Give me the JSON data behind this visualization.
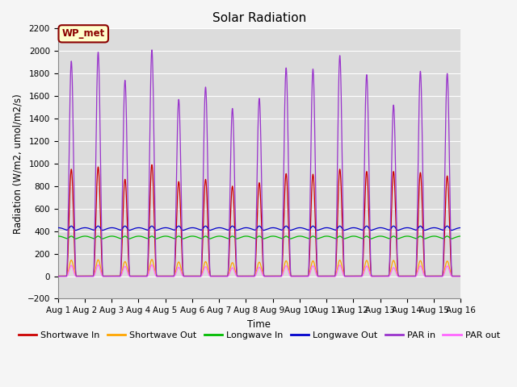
{
  "title": "Solar Radiation",
  "xlabel": "Time",
  "ylabel": "Radiation (W/m2, umol/m2/s)",
  "ylim": [
    -200,
    2200
  ],
  "yticks": [
    -200,
    0,
    200,
    400,
    600,
    800,
    1000,
    1200,
    1400,
    1600,
    1800,
    2000,
    2200
  ],
  "num_days": 15,
  "points_per_day": 288,
  "background_color": "#dcdcdc",
  "grid_color": "#ffffff",
  "annotation_text": "WP_met",
  "annotation_bg": "#ffffcc",
  "annotation_border": "#8b0000",
  "par_in_color": "#9933cc",
  "par_out_color": "#ff66ff",
  "sw_in_color": "#cc0000",
  "sw_out_color": "#ffa500",
  "lw_in_color": "#00bb00",
  "lw_out_color": "#0000cc",
  "day_peaks_par": [
    1910,
    1990,
    1740,
    2010,
    1570,
    1680,
    1490,
    1580,
    1850,
    1840,
    1960,
    1790,
    1520,
    1820,
    1800
  ],
  "sw_peaks": [
    950,
    970,
    860,
    990,
    840,
    860,
    800,
    830,
    910,
    905,
    950,
    930,
    930,
    920,
    890
  ],
  "legend_items": [
    {
      "label": "Shortwave In",
      "color": "#cc0000"
    },
    {
      "label": "Shortwave Out",
      "color": "#ffa500"
    },
    {
      "label": "Longwave In",
      "color": "#00bb00"
    },
    {
      "label": "Longwave Out",
      "color": "#0000cc"
    },
    {
      "label": "PAR in",
      "color": "#9933cc"
    },
    {
      "label": "PAR out",
      "color": "#ff66ff"
    }
  ]
}
